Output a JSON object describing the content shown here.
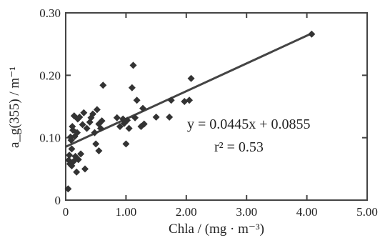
{
  "chart_data": {
    "type": "scatter",
    "xlabel": "Chla / (mg · m⁻³)",
    "ylabel": "a_g(355) / m⁻¹",
    "xlim": [
      0,
      5.0
    ],
    "ylim": [
      0,
      0.3
    ],
    "x_ticks": [
      "0",
      "1.00",
      "2.00",
      "3.00",
      "4.00",
      "5.00"
    ],
    "y_ticks": [
      "0",
      "0.10",
      "0.20",
      "0.30"
    ],
    "grid": false,
    "annotations": {
      "equation": "y = 0.0445x + 0.0855",
      "r_squared": "r² = 0.53"
    },
    "fit": {
      "slope": 0.0445,
      "intercept": 0.0855
    },
    "series": [
      {
        "points": [
          [
            0.04,
            0.018
          ],
          [
            0.05,
            0.064
          ],
          [
            0.06,
            0.072
          ],
          [
            0.07,
            0.058
          ],
          [
            0.08,
            0.101
          ],
          [
            0.09,
            0.096
          ],
          [
            0.1,
            0.082
          ],
          [
            0.1,
            0.055
          ],
          [
            0.11,
            0.118
          ],
          [
            0.12,
            0.112
          ],
          [
            0.13,
            0.062
          ],
          [
            0.14,
            0.135
          ],
          [
            0.15,
            0.102
          ],
          [
            0.16,
            0.07
          ],
          [
            0.18,
            0.045
          ],
          [
            0.19,
            0.108
          ],
          [
            0.2,
            0.13
          ],
          [
            0.21,
            0.065
          ],
          [
            0.23,
            0.133
          ],
          [
            0.25,
            0.074
          ],
          [
            0.28,
            0.121
          ],
          [
            0.3,
            0.14
          ],
          [
            0.32,
            0.05
          ],
          [
            0.35,
            0.115
          ],
          [
            0.4,
            0.125
          ],
          [
            0.42,
            0.132
          ],
          [
            0.45,
            0.138
          ],
          [
            0.48,
            0.108
          ],
          [
            0.5,
            0.09
          ],
          [
            0.52,
            0.145
          ],
          [
            0.55,
            0.079
          ],
          [
            0.55,
            0.122
          ],
          [
            0.58,
            0.115
          ],
          [
            0.6,
            0.127
          ],
          [
            0.62,
            0.184
          ],
          [
            0.85,
            0.132
          ],
          [
            0.9,
            0.118
          ],
          [
            0.95,
            0.13
          ],
          [
            0.97,
            0.123
          ],
          [
            1.0,
            0.09
          ],
          [
            1.02,
            0.128
          ],
          [
            1.05,
            0.115
          ],
          [
            1.1,
            0.18
          ],
          [
            1.12,
            0.216
          ],
          [
            1.15,
            0.132
          ],
          [
            1.18,
            0.16
          ],
          [
            1.25,
            0.118
          ],
          [
            1.28,
            0.147
          ],
          [
            1.3,
            0.122
          ],
          [
            1.5,
            0.133
          ],
          [
            1.72,
            0.133
          ],
          [
            1.75,
            0.16
          ],
          [
            1.97,
            0.158
          ],
          [
            2.05,
            0.16
          ],
          [
            2.08,
            0.195
          ],
          [
            4.08,
            0.266
          ]
        ]
      }
    ]
  }
}
